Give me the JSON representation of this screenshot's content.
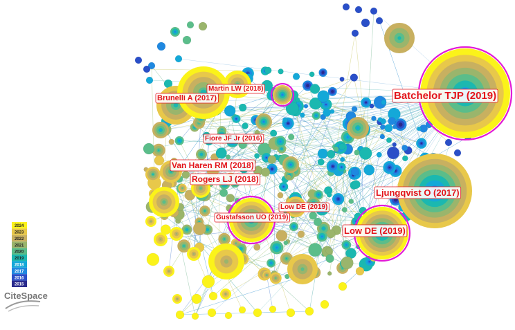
{
  "network": {
    "labels": [
      {
        "key": "batchelor",
        "text": "Batchelor TJP (2019)"
      },
      {
        "key": "ljungqvist",
        "text": "Ljungqvist O (2017)"
      },
      {
        "key": "low2019a",
        "text": "Low DE (2019)"
      },
      {
        "key": "low2019b",
        "text": "Low DE (2019)"
      },
      {
        "key": "gustafsson",
        "text": "Gustafsson UO (2019)"
      },
      {
        "key": "rogers",
        "text": "Rogers LJ (2018)"
      },
      {
        "key": "vanharen",
        "text": "Van Haren RM (2018)"
      },
      {
        "key": "fiore",
        "text": "Fiore JF Jr (2016)"
      },
      {
        "key": "brunelli",
        "text": "Brunelli A (2017)"
      },
      {
        "key": "martin",
        "text": "Martin LW (2018)"
      }
    ],
    "year_colors": {
      "2015": "#2a2a8c",
      "2016": "#2a4fc8",
      "2017": "#1f88e0",
      "2018": "#14a8d8",
      "2019": "#1bb8b0",
      "2020": "#5bbd8a",
      "2021": "#9ab56c",
      "2022": "#c8b060",
      "2023": "#e8c84a",
      "2024": "#fbf31a"
    },
    "burst_ring_color": "#e21bd8",
    "label_color": "#e3141b"
  },
  "legend": {
    "years": [
      "2024",
      "2023",
      "2022",
      "2021",
      "2020",
      "2019",
      "2018",
      "2017",
      "2016",
      "2015"
    ]
  },
  "logo": {
    "text": "CiteSpace"
  }
}
